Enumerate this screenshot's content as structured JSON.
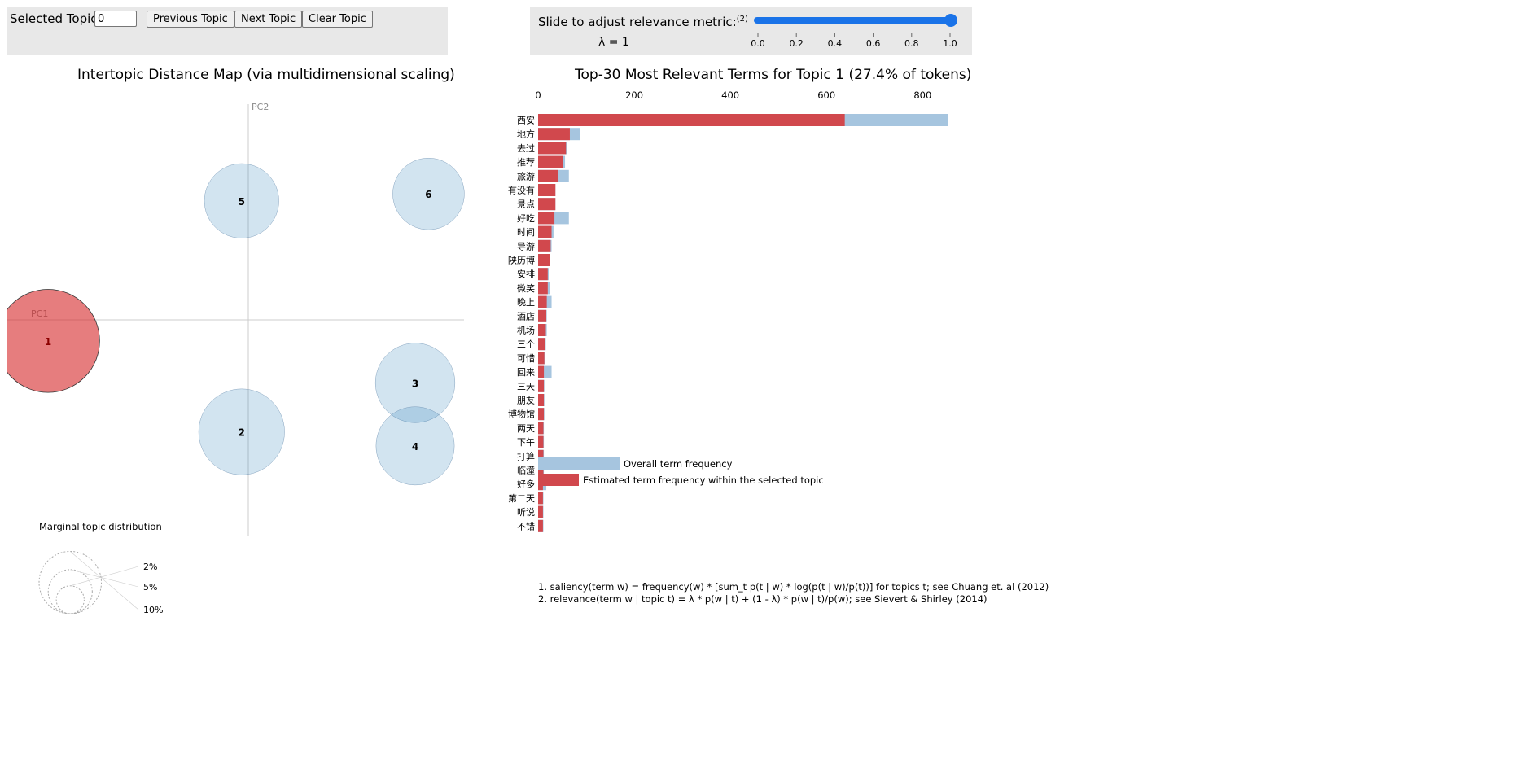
{
  "controls": {
    "selected_topic_label": "Selected Topic:",
    "selected_topic_value": "0",
    "previous_button": "Previous Topic",
    "next_button": "Next Topic",
    "clear_button": "Clear Topic",
    "slider_label": "Slide to adjust relevance metric:",
    "slider_footnote_ref": "(2)",
    "lambda_text": "λ = 1",
    "slider_ticks": [
      "0.0",
      "0.2",
      "0.4",
      "0.6",
      "0.8",
      "1.0"
    ],
    "lambda_value": 1.0
  },
  "colors": {
    "selected_topic": "#d62728",
    "topic_circle": "#1f77b4",
    "overall_bar": "#a6c5df",
    "estimated_bar": "#d1484d"
  },
  "chart_data": [
    {
      "type": "scatter",
      "title": "Intertopic Distance Map (via multidimensional scaling)",
      "xlabel": "PC1",
      "ylabel": "PC2",
      "selected_topic": 1,
      "topics": [
        {
          "id": "1",
          "label": "1",
          "x": -0.3,
          "y": -0.03,
          "marginal_pct": 27.4
        },
        {
          "id": "2",
          "label": "2",
          "x": -0.01,
          "y": -0.16,
          "marginal_pct": 19.0
        },
        {
          "id": "3",
          "label": "3",
          "x": 0.25,
          "y": -0.09,
          "marginal_pct": 16.3
        },
        {
          "id": "4",
          "label": "4",
          "x": 0.25,
          "y": -0.18,
          "marginal_pct": 15.8
        },
        {
          "id": "5",
          "label": "5",
          "x": -0.01,
          "y": 0.17,
          "marginal_pct": 14.3
        },
        {
          "id": "6",
          "label": "6",
          "x": 0.27,
          "y": 0.18,
          "marginal_pct": 13.2
        }
      ],
      "marginal_legend": {
        "title": "Marginal topic distribution",
        "labels": [
          "2%",
          "5%",
          "10%"
        ]
      }
    },
    {
      "type": "bar",
      "orientation": "horizontal",
      "title": "Top-30 Most Relevant Terms for Topic 1 (27.4% of tokens)",
      "x_ticks": [
        0,
        200,
        400,
        600,
        800
      ],
      "xlim": [
        0,
        860
      ],
      "terms": [
        "西安",
        "地方",
        "去过",
        "推荐",
        "旅游",
        "有没有",
        "景点",
        "好吃",
        "时间",
        "导游",
        "陕历博",
        "安排",
        "微笑",
        "晚上",
        "酒店",
        "机场",
        "三个",
        "可惜",
        "回来",
        "三天",
        "朋友",
        "博物馆",
        "两天",
        "下午",
        "打算",
        "临潼",
        "好多",
        "第二天",
        "听说",
        "不错"
      ],
      "series": [
        {
          "name": "Overall term frequency",
          "values": [
            852,
            88,
            60,
            56,
            64,
            36,
            36,
            64,
            32,
            28,
            25,
            22,
            24,
            28,
            18,
            18,
            16,
            14,
            28,
            13,
            13,
            13,
            12,
            12,
            12,
            12,
            17,
            11,
            11,
            11
          ]
        },
        {
          "name": "Estimated term frequency within the selected topic",
          "values": [
            638,
            66,
            58,
            52,
            42,
            36,
            36,
            34,
            28,
            26,
            24,
            20,
            20,
            18,
            17,
            16,
            15,
            13,
            12,
            12,
            12,
            12,
            11,
            11,
            11,
            11,
            10,
            10,
            10,
            10
          ]
        }
      ],
      "footnotes": [
        "1. saliency(term w) = frequency(w) * [sum_t p(t | w) * log(p(t | w)/p(t))] for topics t; see Chuang et. al (2012)",
        "2. relevance(term w | topic t) = λ * p(w | t) + (1 - λ) * p(w | t)/p(w); see Sievert & Shirley (2014)"
      ]
    }
  ]
}
